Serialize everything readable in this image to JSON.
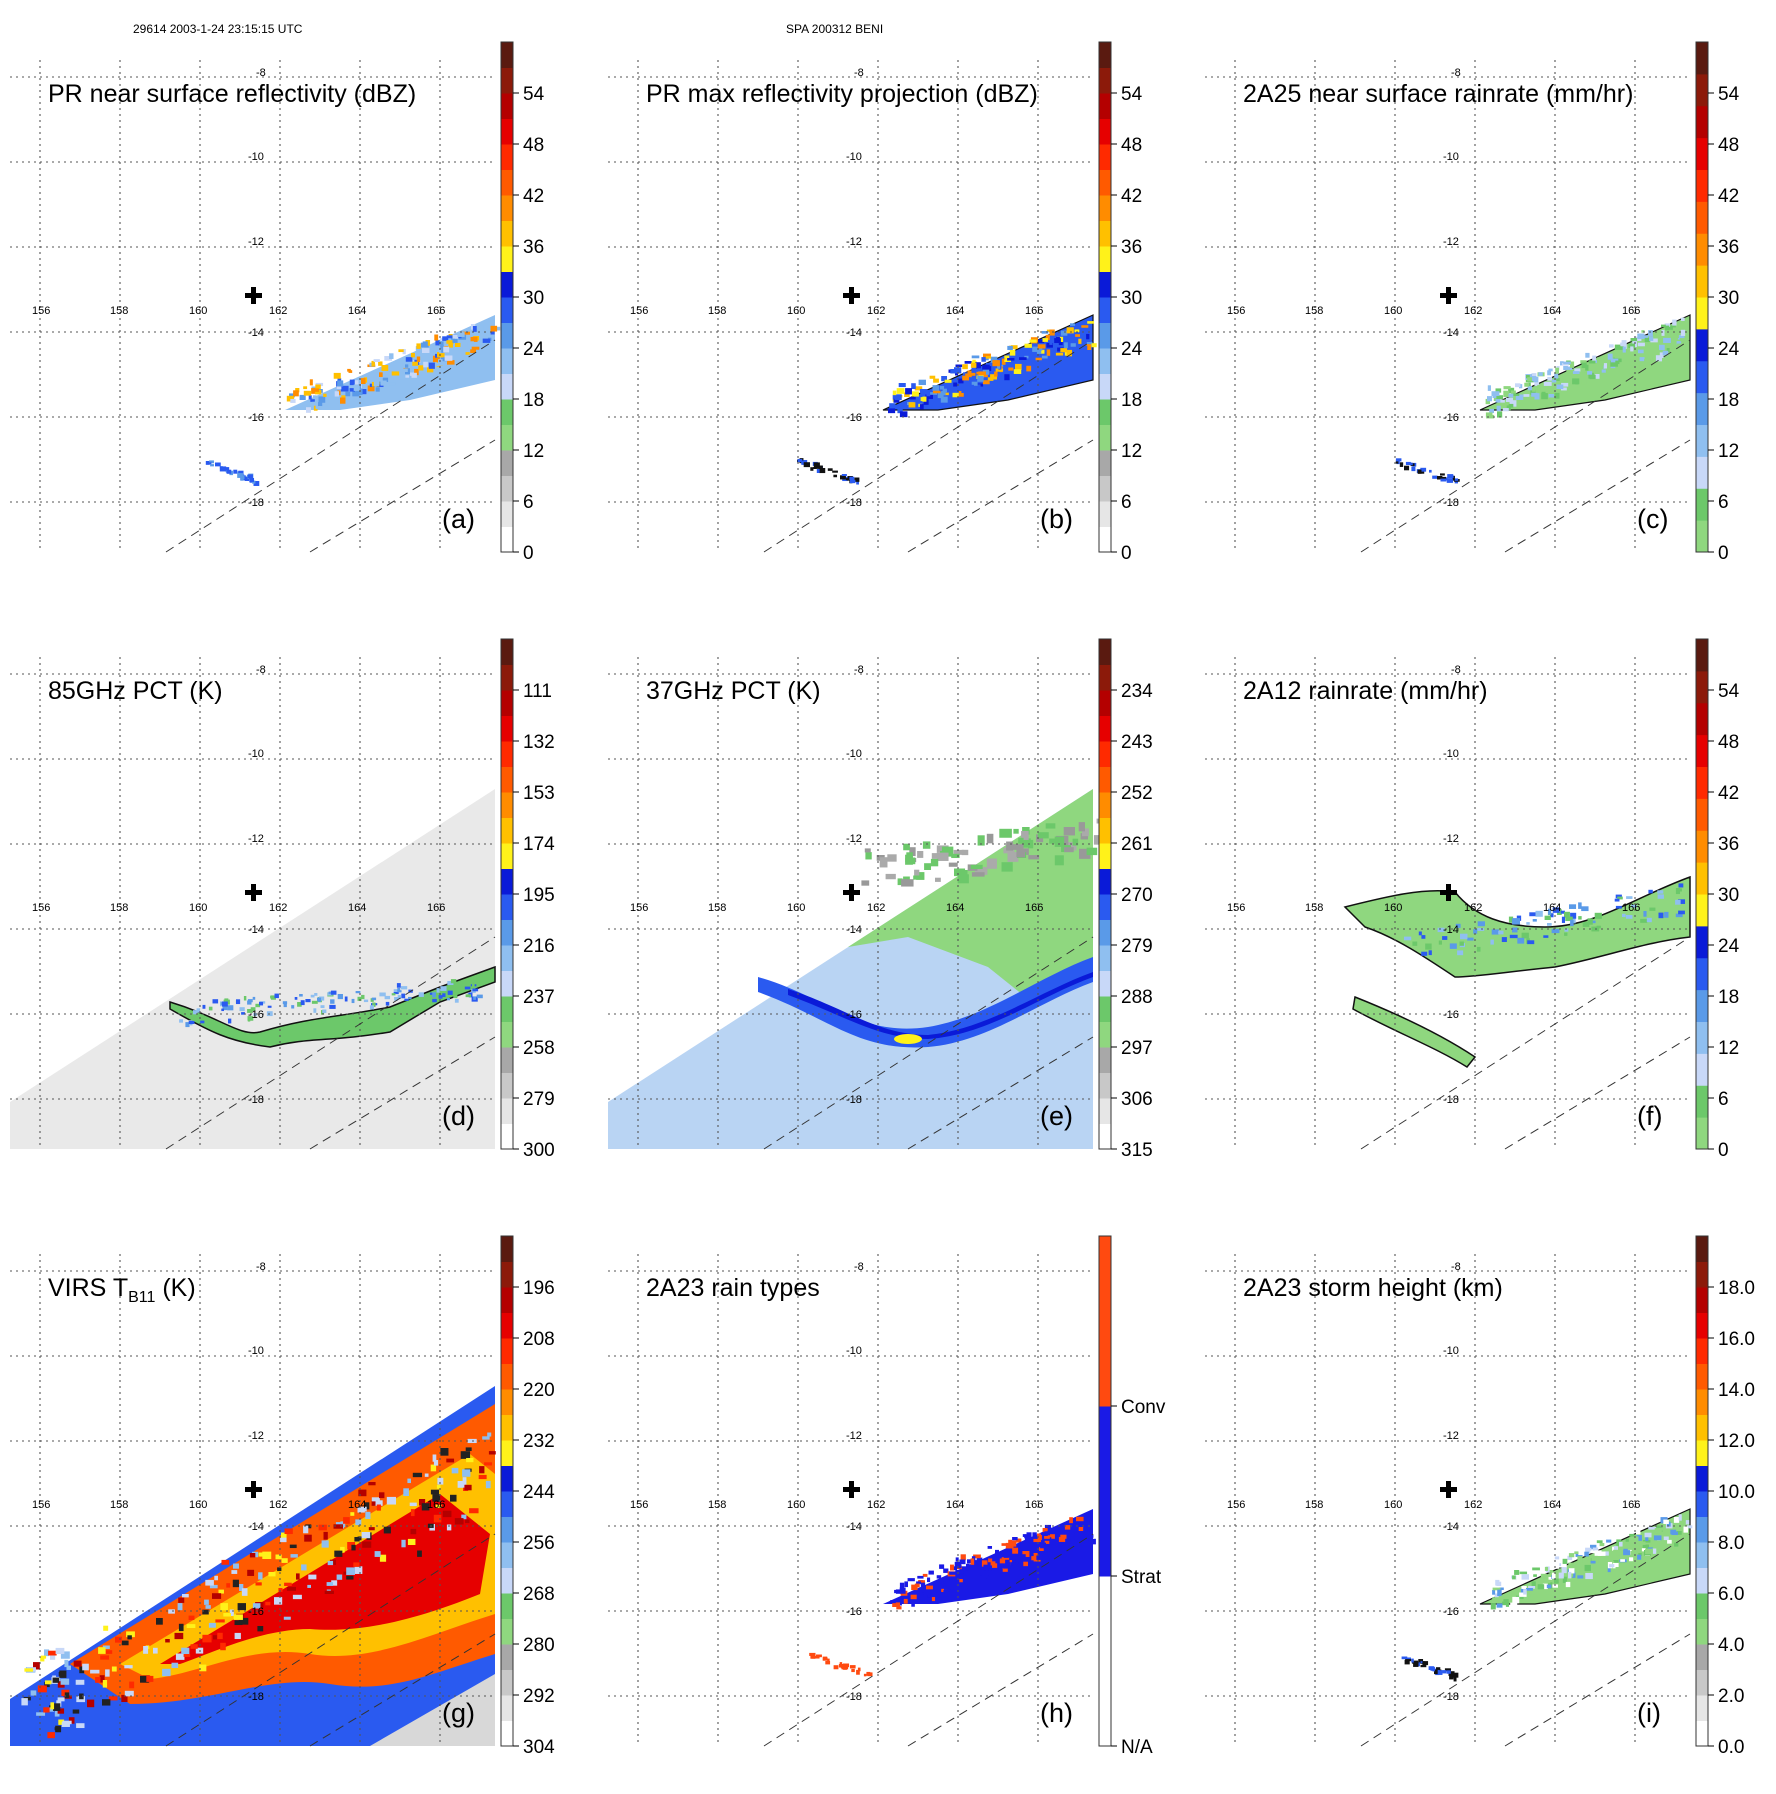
{
  "header": {
    "orbit_time": "29614 2003-1-24 23:15:15 UTC",
    "storm_id": "SPA 200312 BENI"
  },
  "grid": {
    "lon_labels": [
      "156",
      "158",
      "160",
      "162",
      "164",
      "166"
    ],
    "lat_labels": [
      "-8",
      "-10",
      "-12",
      "-14",
      "-16",
      "-18"
    ],
    "center_marker": "storm-center-cross-icon"
  },
  "panels": [
    {
      "id": "a",
      "title": "PR near surface reflectivity (dBZ)",
      "letter": "(a)",
      "colorbar": {
        "ticks": [
          "0",
          "6",
          "12",
          "18",
          "24",
          "30",
          "36",
          "42",
          "48",
          "54"
        ]
      }
    },
    {
      "id": "b",
      "title": "PR max reflectivity projection (dBZ)",
      "letter": "(b)",
      "colorbar": {
        "ticks": [
          "0",
          "6",
          "12",
          "18",
          "24",
          "30",
          "36",
          "42",
          "48",
          "54"
        ]
      }
    },
    {
      "id": "c",
      "title": "2A25 near surface rainrate (mm/hr)",
      "letter": "(c)",
      "colorbar": {
        "ticks": [
          "0",
          "6",
          "12",
          "18",
          "24",
          "30",
          "36",
          "42",
          "48",
          "54"
        ]
      }
    },
    {
      "id": "d",
      "title": "85GHz PCT (K)",
      "letter": "(d)",
      "colorbar": {
        "ticks": [
          "300",
          "279",
          "258",
          "237",
          "216",
          "195",
          "174",
          "153",
          "132",
          "111"
        ]
      }
    },
    {
      "id": "e",
      "title": "37GHz PCT (K)",
      "letter": "(e)",
      "colorbar": {
        "ticks": [
          "315",
          "306",
          "297",
          "288",
          "279",
          "270",
          "261",
          "252",
          "243",
          "234"
        ]
      }
    },
    {
      "id": "f",
      "title": "2A12 rainrate (mm/hr)",
      "letter": "(f)",
      "colorbar": {
        "ticks": [
          "0",
          "6",
          "12",
          "18",
          "24",
          "30",
          "36",
          "42",
          "48",
          "54"
        ]
      }
    },
    {
      "id": "g",
      "title_main": "VIRS T",
      "title_sub": "B11",
      "title_unit": " (K)",
      "letter": "(g)",
      "colorbar": {
        "ticks": [
          "304",
          "292",
          "280",
          "268",
          "256",
          "244",
          "232",
          "220",
          "208",
          "196"
        ]
      }
    },
    {
      "id": "h",
      "title": "2A23 rain types",
      "letter": "(h)",
      "colorbar": {
        "ticks": [
          "N/A",
          "Strat",
          "Conv"
        ]
      }
    },
    {
      "id": "i",
      "title": "2A23 storm height (km)",
      "letter": "(i)",
      "colorbar": {
        "ticks": [
          "0.0",
          "2.0",
          "4.0",
          "6.0",
          "8.0",
          "10.0",
          "12.0",
          "14.0",
          "16.0",
          "18.0"
        ]
      }
    }
  ],
  "palettes": {
    "std": [
      "#ffffff",
      "#e6e6e6",
      "#c8c8c8",
      "#a8a8a8",
      "#8fd77f",
      "#6cc86a",
      "#c8d8f8",
      "#8fbff0",
      "#5a9ae8",
      "#2a5af0",
      "#0a1ad8",
      "#fff21a",
      "#ffc000",
      "#ff8c00",
      "#ff5a00",
      "#ff2a00",
      "#e60000",
      "#b40000",
      "#8c1a0a",
      "#5a1a10"
    ],
    "rain": [
      "#8fd77f",
      "#6cc86a",
      "#c8d8f8",
      "#8fbff0",
      "#5a9ae8",
      "#2a5af0",
      "#0a1ad8",
      "#fff21a",
      "#ffc000",
      "#ff8c00",
      "#ff5a00",
      "#ff2a00",
      "#e60000",
      "#b40000",
      "#8c1a0a",
      "#5a1a10"
    ],
    "types": [
      "#ffffff",
      "#1a1ae6",
      "#ff4a10"
    ]
  }
}
